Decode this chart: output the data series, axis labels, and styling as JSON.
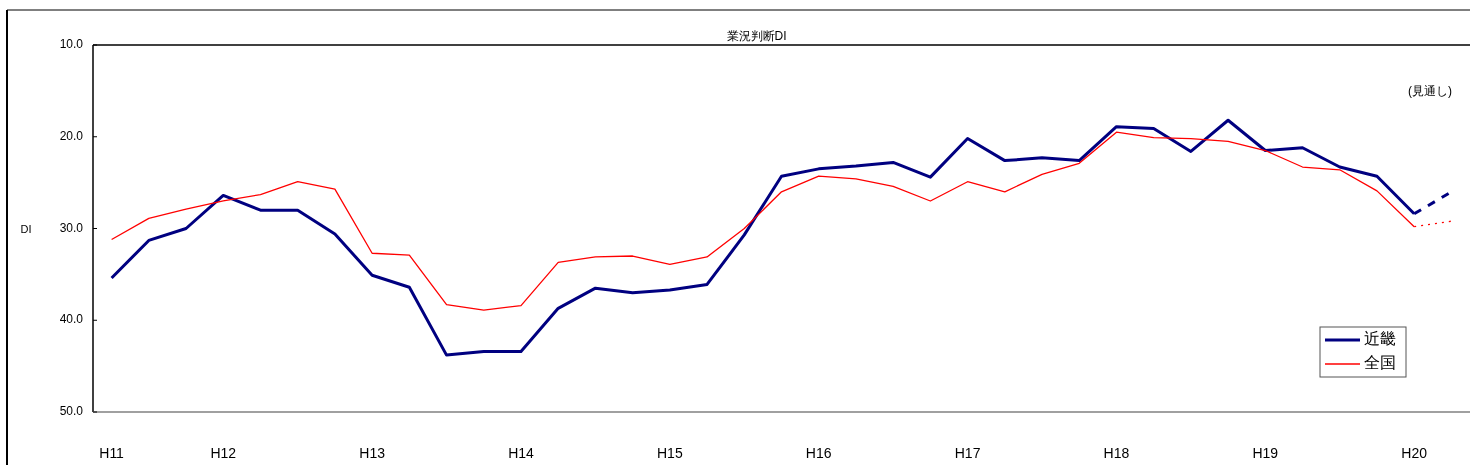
{
  "chart_data": {
    "type": "line",
    "title": "業況判断DI",
    "ylabel": "DI",
    "annotations": [
      "(見通し)"
    ],
    "categories": [
      "H11",
      null,
      null,
      "H12",
      null,
      null,
      null,
      "H13",
      null,
      null,
      null,
      "H14",
      null,
      null,
      null,
      "H15",
      null,
      null,
      null,
      "H16",
      null,
      null,
      null,
      "H17",
      null,
      null,
      null,
      "H18",
      null,
      null,
      null,
      "H19",
      null,
      null,
      null,
      "H20",
      null
    ],
    "series": [
      {
        "name": "近畿",
        "color": "#000080",
        "line_style": "solid",
        "values": [
          35.4,
          31.3,
          30.0,
          26.4,
          28.0,
          28.0,
          30.6,
          35.1,
          36.4,
          43.8,
          43.4,
          43.4,
          38.7,
          36.5,
          37.0,
          36.7,
          36.1,
          30.7,
          24.3,
          23.5,
          23.2,
          22.8,
          24.4,
          20.2,
          22.6,
          22.3,
          22.6,
          18.9,
          19.1,
          21.6,
          18.2,
          21.5,
          21.2,
          23.3,
          24.3,
          28.4,
          null
        ]
      },
      {
        "name": "全国",
        "color": "#ff0000",
        "line_style": "solid",
        "values": [
          31.2,
          28.9,
          27.9,
          27.0,
          26.3,
          24.9,
          25.7,
          32.7,
          32.9,
          38.3,
          38.9,
          38.4,
          33.7,
          33.1,
          33.0,
          33.9,
          33.1,
          30.0,
          26.0,
          24.3,
          24.6,
          25.4,
          27.0,
          24.9,
          26.0,
          24.1,
          22.9,
          19.5,
          20.1,
          20.2,
          20.5,
          21.5,
          23.3,
          23.6,
          25.9,
          29.8,
          null
        ]
      },
      {
        "color": "#000080",
        "line_style": "dashed",
        "values": [
          null,
          null,
          null,
          null,
          null,
          null,
          null,
          null,
          null,
          null,
          null,
          null,
          null,
          null,
          null,
          null,
          null,
          null,
          null,
          null,
          null,
          null,
          null,
          null,
          null,
          null,
          null,
          null,
          null,
          null,
          null,
          null,
          null,
          null,
          null,
          28.4,
          26.0
        ]
      },
      {
        "color": "#ff0000",
        "line_style": "dotted",
        "values": [
          null,
          null,
          null,
          null,
          null,
          null,
          null,
          null,
          null,
          null,
          null,
          null,
          null,
          null,
          null,
          null,
          null,
          null,
          null,
          null,
          null,
          null,
          null,
          null,
          null,
          null,
          null,
          null,
          null,
          null,
          null,
          null,
          null,
          null,
          null,
          29.8,
          29.2
        ]
      }
    ],
    "ylim": [
      50,
      10
    ],
    "yticks": [
      {
        "value": 10,
        "label": "10.0"
      },
      {
        "value": 20,
        "label": "20.0"
      },
      {
        "value": 30,
        "label": "30.0"
      },
      {
        "value": 40,
        "label": "40.0"
      },
      {
        "value": 50,
        "label": "50.0"
      }
    ],
    "legend": "bottom right"
  }
}
